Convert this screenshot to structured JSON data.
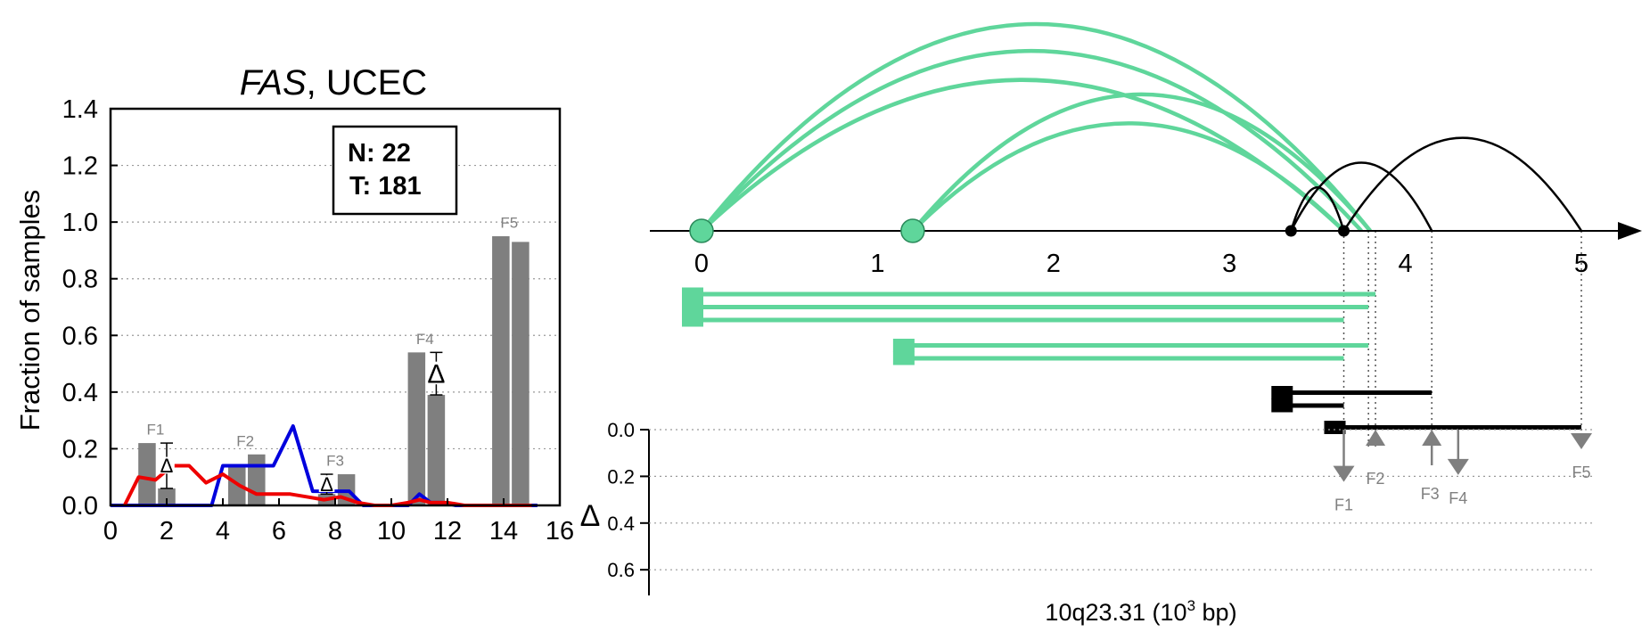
{
  "chart_data": [
    {
      "type": "bar",
      "title_gene": "FAS",
      "title_rest": ", UCEC",
      "ylabel": "Fraction of samples",
      "xlim": [
        0,
        16
      ],
      "ylim": [
        0,
        1.4
      ],
      "xticks": [
        "0",
        "2",
        "4",
        "6",
        "8",
        "10",
        "12",
        "14",
        "16"
      ],
      "xtick_values": [
        0,
        2,
        4,
        6,
        8,
        10,
        12,
        14,
        16
      ],
      "yticks": [
        "0.0",
        "0.2",
        "0.4",
        "0.6",
        "0.8",
        "1.0",
        "1.2",
        "1.4"
      ],
      "ytick_values": [
        0,
        0.2,
        0.4,
        0.6,
        0.8,
        1.0,
        1.2,
        1.4
      ],
      "grid_y": true,
      "legend_box": {
        "line1": "N: 22",
        "line2": "T: 181"
      },
      "bar_color": "#7f7f7f",
      "bars": [
        {
          "x": 1.3,
          "value": 0.22
        },
        {
          "x": 2.0,
          "value": 0.06
        },
        {
          "x": 4.5,
          "value": 0.14
        },
        {
          "x": 5.2,
          "value": 0.18
        },
        {
          "x": 7.7,
          "value": 0.04
        },
        {
          "x": 8.4,
          "value": 0.11
        },
        {
          "x": 10.9,
          "value": 0.54
        },
        {
          "x": 11.6,
          "value": 0.39
        },
        {
          "x": 13.9,
          "value": 0.95
        },
        {
          "x": 14.6,
          "value": 0.93
        }
      ],
      "feature_labels": [
        {
          "label": "F1",
          "x": 1.6,
          "y": 0.25
        },
        {
          "label": "F2",
          "x": 4.8,
          "y": 0.21
        },
        {
          "label": "F3",
          "x": 8.0,
          "y": 0.14
        },
        {
          "label": "F4",
          "x": 11.2,
          "y": 0.57
        },
        {
          "label": "F5",
          "x": 14.2,
          "y": 0.98
        }
      ],
      "delta_markers": [
        {
          "x": 2.0,
          "low": 0.06,
          "high": 0.22,
          "symbol": "Δ",
          "size": "small"
        },
        {
          "x": 7.7,
          "low": 0.04,
          "high": 0.11,
          "symbol": "Δ",
          "size": "small"
        },
        {
          "x": 11.6,
          "low": 0.39,
          "high": 0.54,
          "symbol": "Δ",
          "size": "large"
        }
      ],
      "series": [
        {
          "color": "#0000dd",
          "x": [
            0,
            1,
            2,
            3,
            3.6,
            4.0,
            4.6,
            5.2,
            5.8,
            6.5,
            7.2,
            7.8,
            8.5,
            9.0,
            10.0,
            10.6,
            11.0,
            11.4,
            11.8,
            12.3,
            13.0,
            13.7,
            14.2,
            14.8,
            15.2
          ],
          "y": [
            0,
            0,
            0,
            0,
            0.0,
            0.14,
            0.14,
            0.14,
            0.14,
            0.28,
            0.05,
            0.05,
            0.05,
            0,
            0,
            0,
            0.04,
            0.01,
            0.01,
            0,
            0,
            0,
            0,
            0,
            0
          ]
        },
        {
          "color": "#ee0000",
          "x": [
            0.5,
            1.0,
            1.6,
            2.2,
            2.8,
            3.4,
            4.0,
            4.6,
            5.2,
            5.8,
            6.4,
            7.0,
            7.6,
            8.2,
            8.8,
            9.4,
            10.0,
            10.6,
            11.0,
            11.4,
            12.0,
            12.6,
            13.2,
            13.8,
            14.4,
            15.0
          ],
          "y": [
            0.0,
            0.1,
            0.09,
            0.14,
            0.14,
            0.08,
            0.11,
            0.07,
            0.04,
            0.04,
            0.04,
            0.03,
            0.02,
            0.03,
            0.01,
            0.0,
            0.0,
            0.01,
            0.02,
            0.01,
            0.01,
            0.0,
            0.0,
            0.0,
            0.0,
            0.0
          ]
        }
      ]
    },
    {
      "type": "diagram",
      "xlabel_prefix": "10q23.31 (10",
      "xlabel_sup": "3",
      "xlabel_suffix": " bp)",
      "xlim": [
        0,
        5.2
      ],
      "xticks": [
        "0",
        "1",
        "2",
        "3",
        "4",
        "5"
      ],
      "xtick_values": [
        0,
        1,
        2,
        3,
        4,
        5
      ],
      "green": "#5fd69b",
      "black": "#000000",
      "green_nodes": [
        0,
        1.2
      ],
      "black_nodes": [
        3.35,
        3.65
      ],
      "arcs": [
        {
          "from": 0,
          "to": 3.8,
          "height": 1.0,
          "color": "green"
        },
        {
          "from": 0,
          "to": 3.75,
          "height": 0.87,
          "color": "green"
        },
        {
          "from": 0,
          "to": 3.65,
          "height": 0.73,
          "color": "green"
        },
        {
          "from": 1.2,
          "to": 3.8,
          "height": 0.66,
          "color": "green"
        },
        {
          "from": 1.2,
          "to": 3.65,
          "height": 0.52,
          "color": "green"
        },
        {
          "from": 3.35,
          "to": 4.15,
          "height": 0.33,
          "color": "black"
        },
        {
          "from": 3.35,
          "to": 3.65,
          "height": 0.21,
          "color": "black"
        },
        {
          "from": 3.65,
          "to": 5.0,
          "height": 0.45,
          "color": "black"
        }
      ],
      "segments": [
        {
          "from": 0,
          "to": 3.83,
          "color": "green"
        },
        {
          "from": 0,
          "to": 3.79,
          "color": "green"
        },
        {
          "from": 0,
          "to": 3.65,
          "color": "green"
        },
        {
          "from": 1.2,
          "to": 3.79,
          "color": "green"
        },
        {
          "from": 1.2,
          "to": 3.65,
          "color": "green"
        },
        {
          "from": 3.35,
          "to": 4.15,
          "color": "black"
        },
        {
          "from": 3.35,
          "to": 3.65,
          "color": "black"
        },
        {
          "from": 3.65,
          "to": 5.0,
          "color": "black"
        }
      ],
      "guide_positions": [
        3.65,
        3.79,
        3.83,
        4.15,
        5.0
      ],
      "delta_panel": {
        "ylabel": "Δ",
        "ylim": [
          0,
          0.7
        ],
        "yticks": [
          "0.0",
          "0.2",
          "0.4",
          "0.6"
        ],
        "ytick_values": [
          0,
          0.2,
          0.4,
          0.6
        ],
        "grid": true,
        "marker_color": "#7f7f7f",
        "markers": [
          {
            "label": "F1",
            "x": 3.65,
            "value": 0.14,
            "direction": "down"
          },
          {
            "label": "F2",
            "x": 3.83,
            "value": 0.0,
            "direction": "up"
          },
          {
            "label": "F3",
            "x": 4.15,
            "value": 0.0,
            "direction": "up"
          },
          {
            "label": "F4",
            "x": 4.3,
            "value": 0.11,
            "direction": "down"
          },
          {
            "label": "F5",
            "x": 5.0,
            "value": 0.0,
            "direction": "down"
          }
        ]
      }
    }
  ]
}
